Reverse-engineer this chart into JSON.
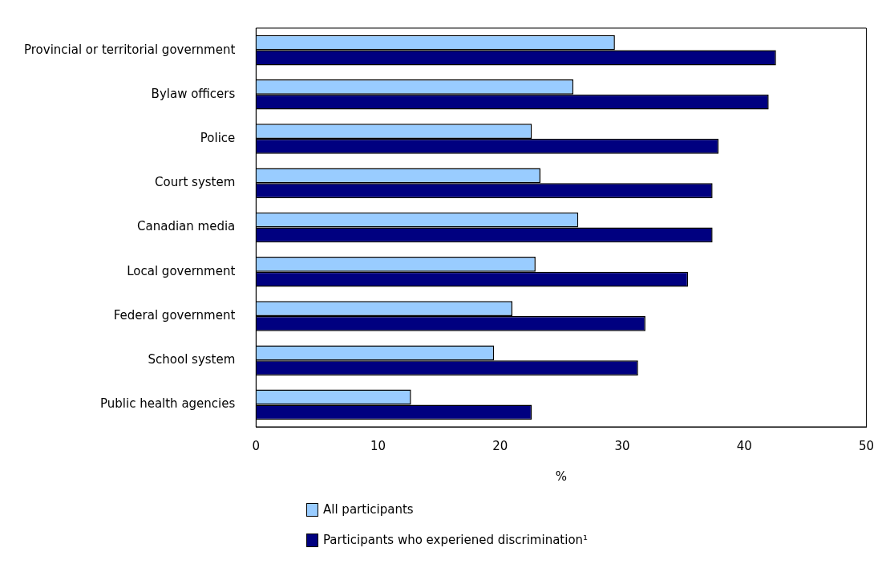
{
  "chart_data": {
    "type": "bar",
    "orientation": "horizontal",
    "xlabel": "%",
    "categories": [
      "Provincial or territorial government",
      "Bylaw officers",
      "Police",
      "Court system",
      "Canadian media",
      "Local government",
      "Federal government",
      "School system",
      "Public health agencies"
    ],
    "series": [
      {
        "name": "All participants",
        "color": "#99ccff",
        "values": [
          29.4,
          26.0,
          22.6,
          23.3,
          26.4,
          22.9,
          21.0,
          19.5,
          12.7
        ]
      },
      {
        "name": "Participants who experiened discrimination¹",
        "color": "#000080",
        "values": [
          42.6,
          42.0,
          37.9,
          37.4,
          37.4,
          35.4,
          31.9,
          31.3,
          22.6
        ]
      }
    ],
    "xlim": [
      0,
      50
    ],
    "xticks": [
      0,
      10,
      20,
      30,
      40,
      50
    ],
    "grid": false,
    "legend": "bottom"
  }
}
